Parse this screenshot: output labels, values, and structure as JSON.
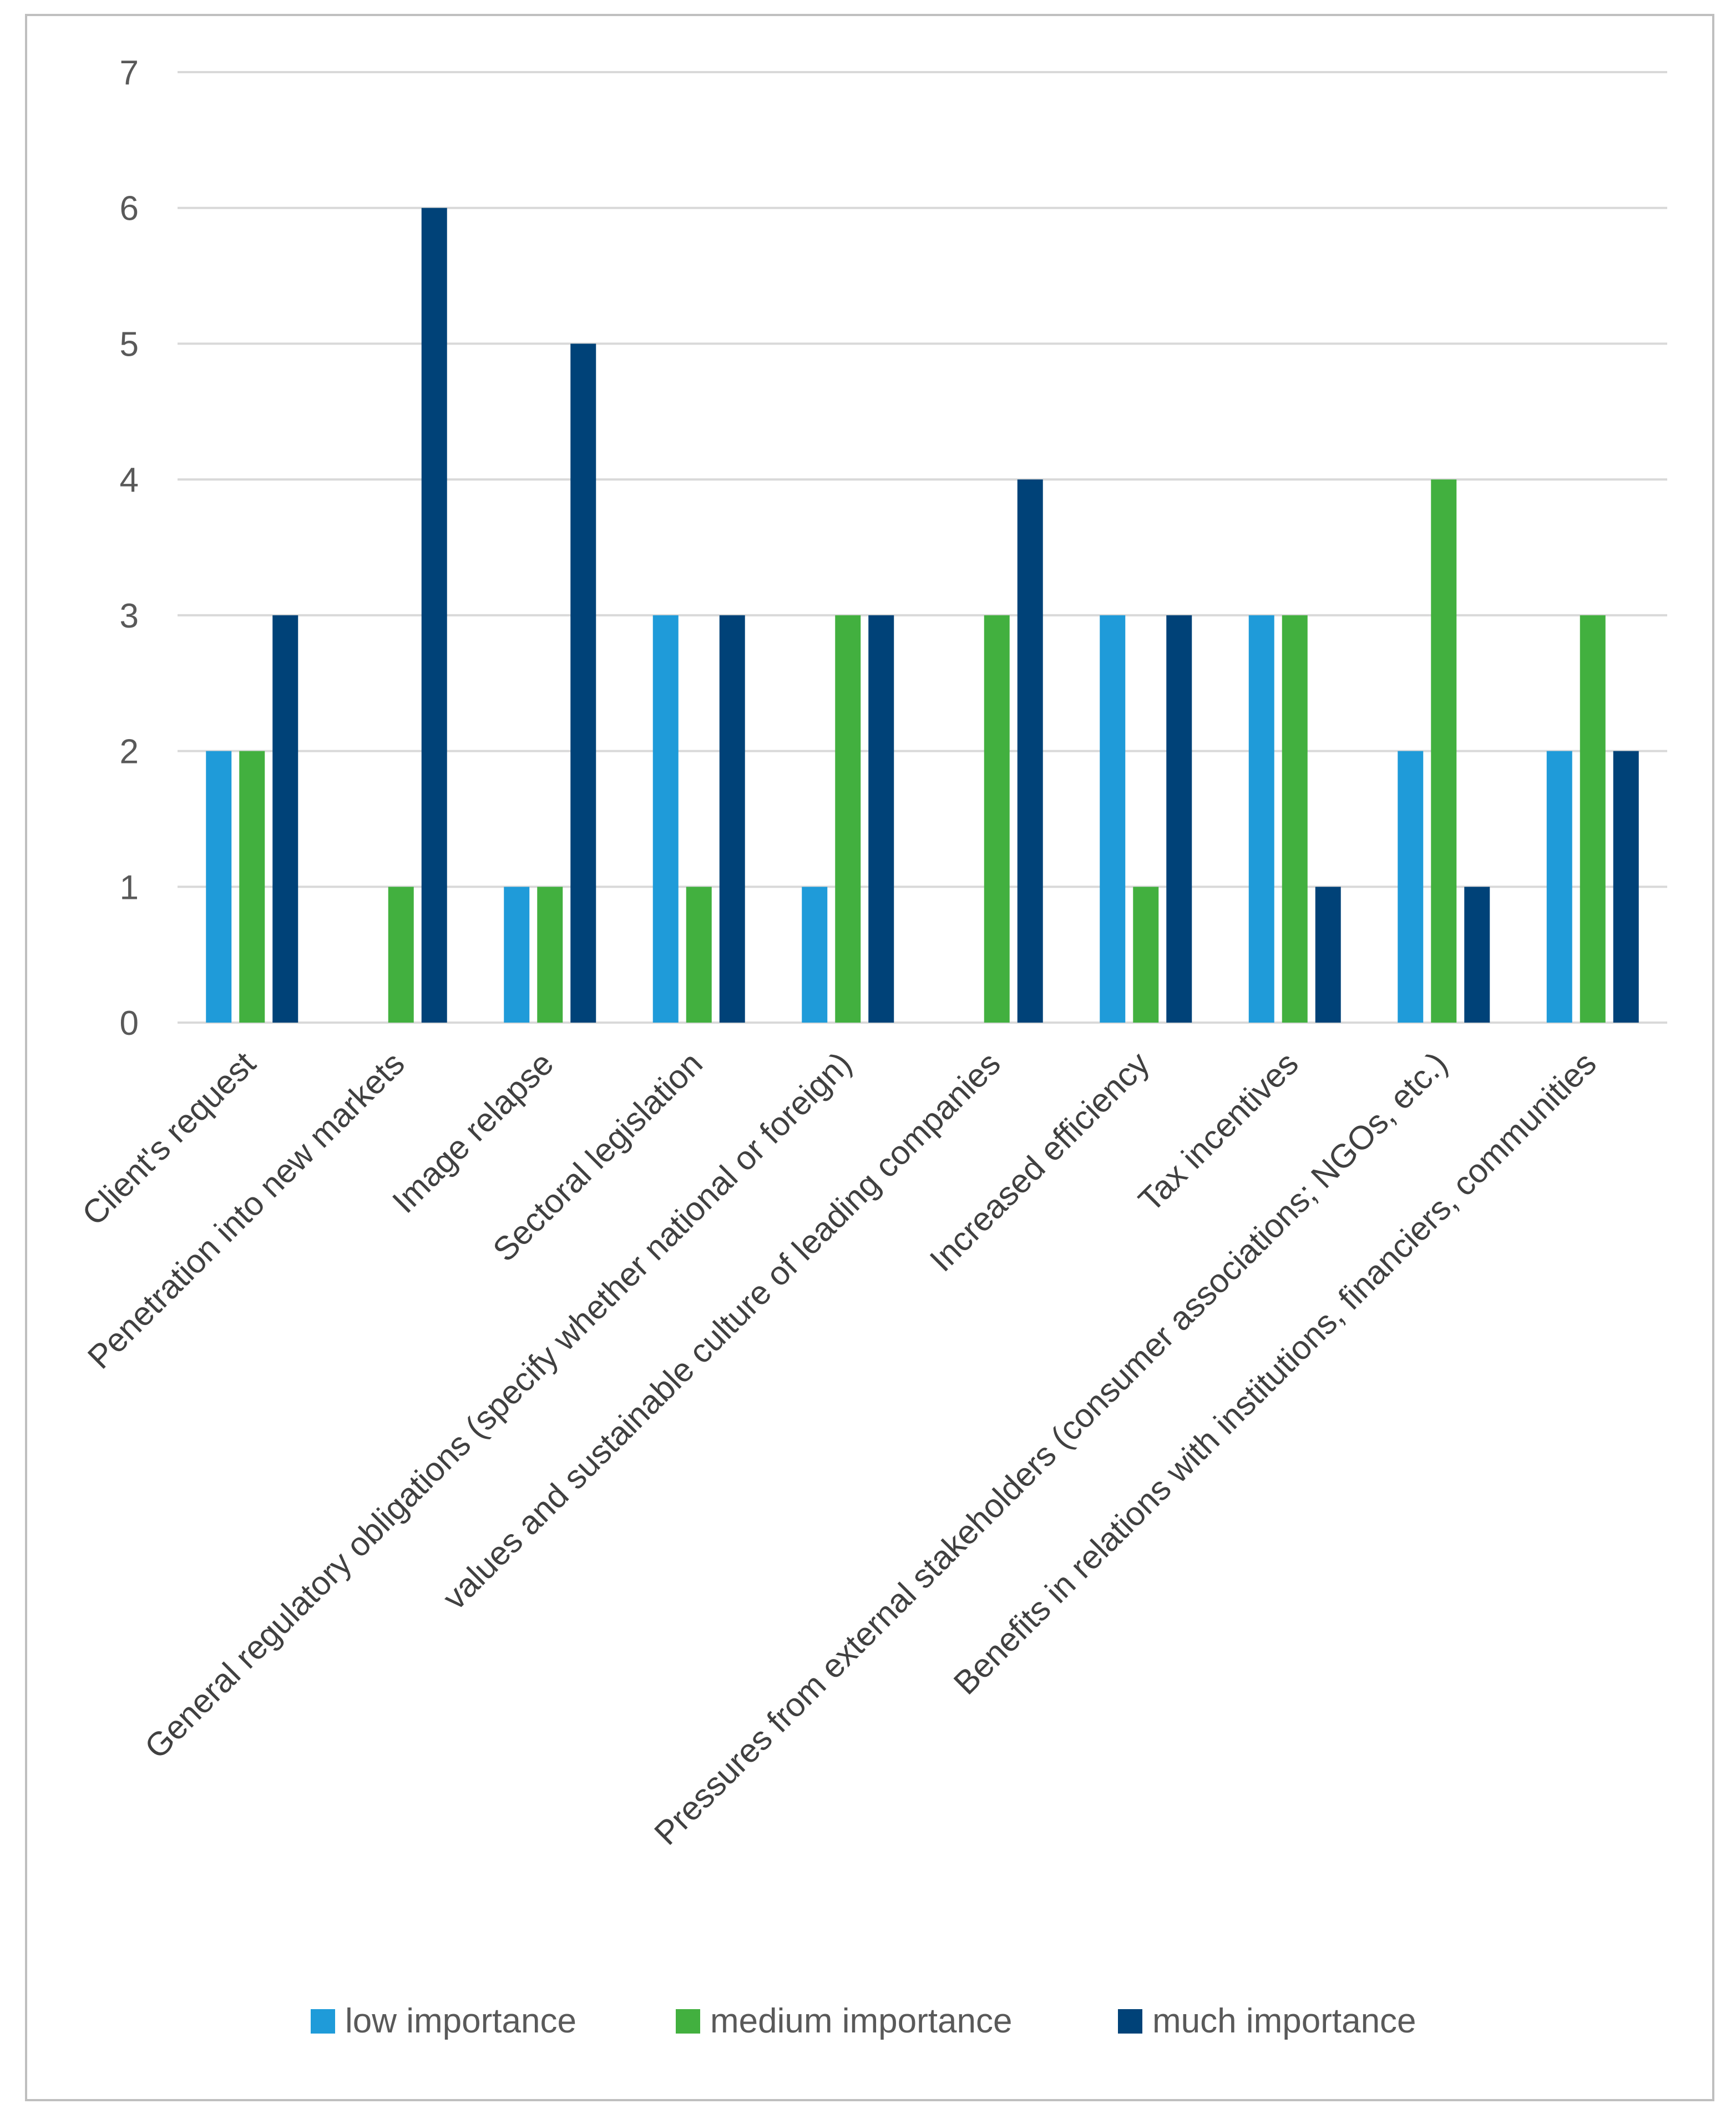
{
  "chart_data": {
    "type": "bar",
    "title": "",
    "xlabel": "",
    "ylabel": "",
    "ylim": [
      0,
      7
    ],
    "yticks": [
      0,
      1,
      2,
      3,
      4,
      5,
      6,
      7
    ],
    "grid": true,
    "legend_position": "bottom",
    "categories": [
      "Client's request",
      "Penetration into new markets",
      "Image relapse",
      "Sectoral legislation",
      "General regulatory obligations (specify whether national or foreign)",
      "values and sustainable culture of leading companies",
      "Increased efficiency",
      "Tax incentives",
      "Pressures from external stakeholders (consumer associations; NGOs, etc.)",
      "Benefits in relations with institutions, financiers, communities"
    ],
    "series": [
      {
        "name": "low importance",
        "color": "#1f9bd9",
        "values": [
          2,
          0,
          1,
          3,
          1,
          0,
          3,
          3,
          2,
          2
        ]
      },
      {
        "name": "medium importance",
        "color": "#42b03f",
        "values": [
          2,
          1,
          1,
          1,
          3,
          3,
          1,
          3,
          4,
          3
        ]
      },
      {
        "name": "much importance",
        "color": "#004278",
        "values": [
          3,
          6,
          5,
          3,
          3,
          4,
          3,
          1,
          1,
          2
        ]
      }
    ]
  }
}
